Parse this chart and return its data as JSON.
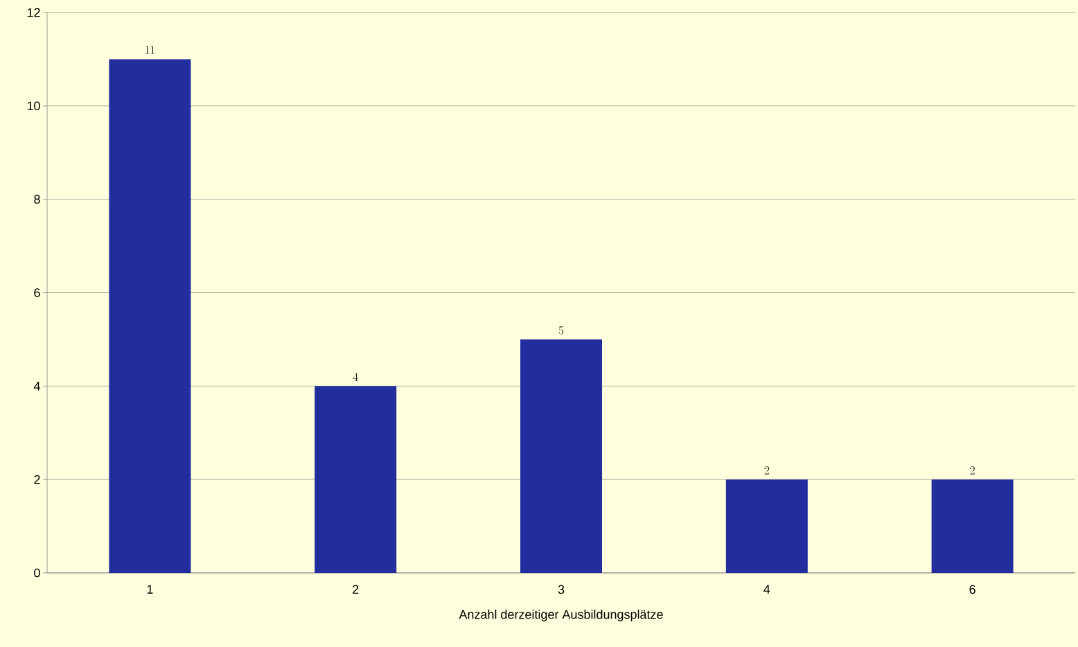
{
  "chart_data": {
    "type": "bar",
    "xlabel": "Anzahl derzeitiger Ausbildungsplätze",
    "categories": [
      "1",
      "2",
      "3",
      "4",
      "6"
    ],
    "values": [
      11,
      4,
      5,
      2,
      2
    ],
    "color": "#222e9e",
    "ylim": [
      0,
      12
    ],
    "yticks": [
      0,
      2,
      4,
      6,
      8,
      10,
      12
    ],
    "grid": "y",
    "data_labels": true
  }
}
